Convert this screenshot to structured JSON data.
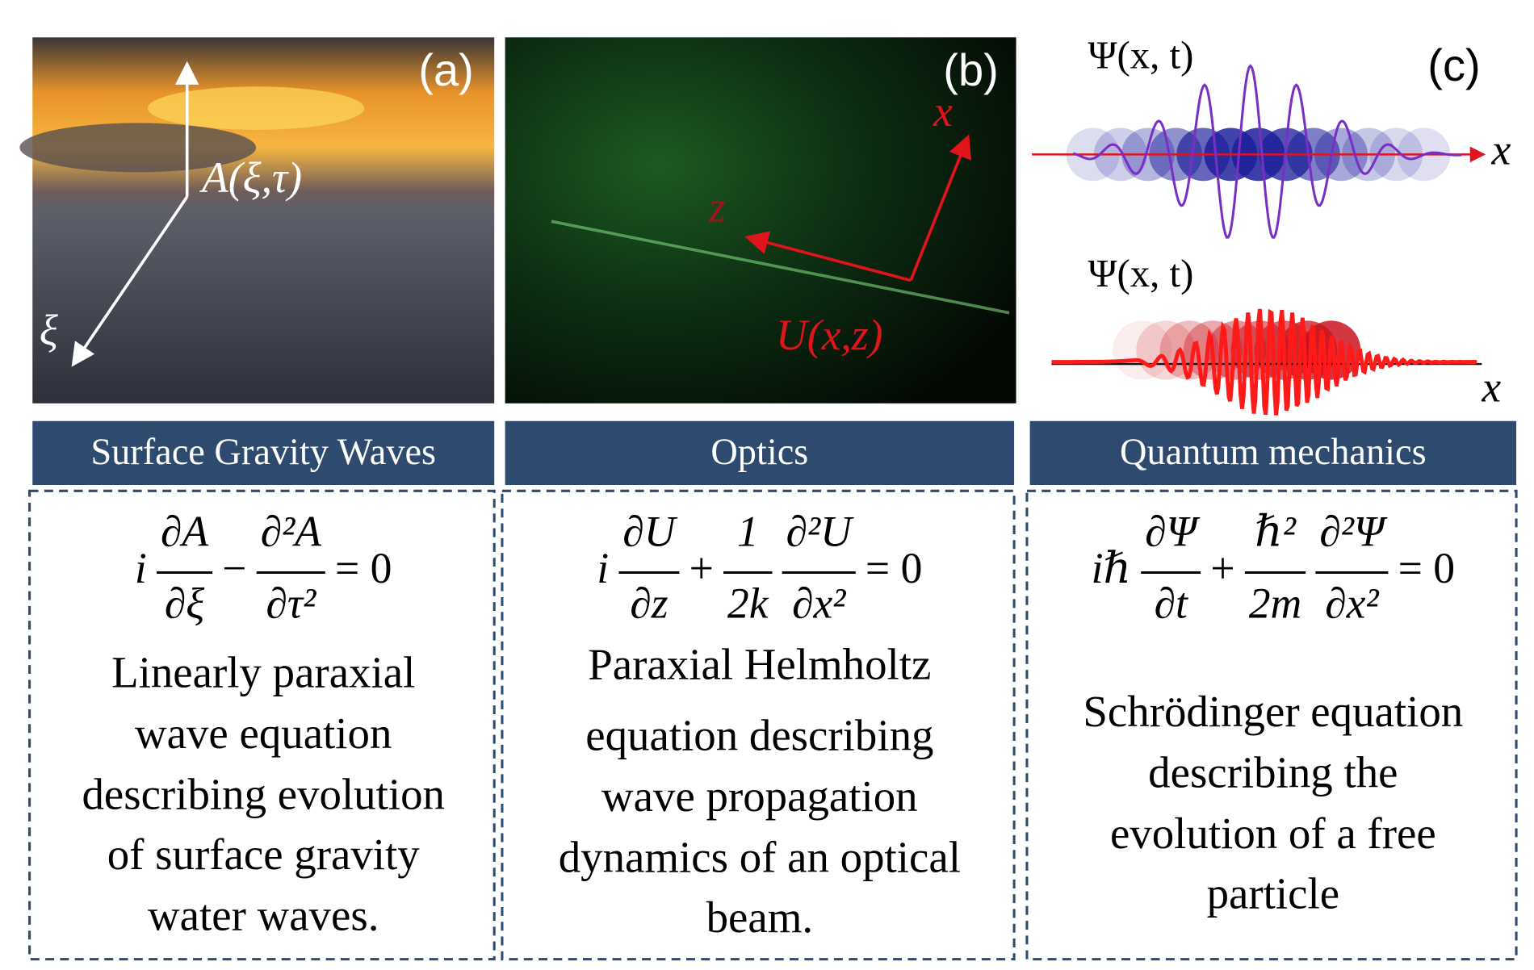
{
  "panels": [
    {
      "label": "(a)",
      "header": "Surface Gravity Waves",
      "annotations": [
        "A(ξ,τ)",
        "ξ"
      ],
      "equation": [
        "i",
        {
          "num": "∂A",
          "den": "∂ξ"
        },
        "−",
        {
          "num": "∂²A",
          "den": "∂τ²"
        },
        "= 0"
      ],
      "description": [
        "Linearly paraxial",
        "wave equation",
        "describing evolution",
        "of  surface gravity",
        "water waves."
      ]
    },
    {
      "label": "(b)",
      "header": "Optics",
      "annotations": [
        "x",
        "z",
        "U(x,z)"
      ],
      "equation": [
        "i",
        {
          "num": "∂U",
          "den": "∂z"
        },
        "+",
        {
          "num": "1",
          "den": "2k"
        },
        {
          "num": "∂²U",
          "den": "∂x²"
        },
        "= 0"
      ],
      "description": [
        "Paraxial Helmholtz",
        "equation describing",
        "wave propagation",
        "dynamics of an optical",
        "beam."
      ]
    },
    {
      "label": "(c)",
      "header": "Quantum mechanics",
      "annotations": [
        "Ψ(x, t)",
        "x",
        "Ψ(x, t)",
        "x"
      ],
      "equation": [
        "iℏ",
        {
          "num": "∂Ψ",
          "den": "∂t"
        },
        "+",
        {
          "num": "ℏ²",
          "den": "2m"
        },
        {
          "num": "∂²Ψ",
          "den": "∂x²"
        },
        "= 0"
      ],
      "description": [
        "Schrödinger equation",
        "describing the",
        "evolution of a free",
        "particle"
      ]
    }
  ]
}
